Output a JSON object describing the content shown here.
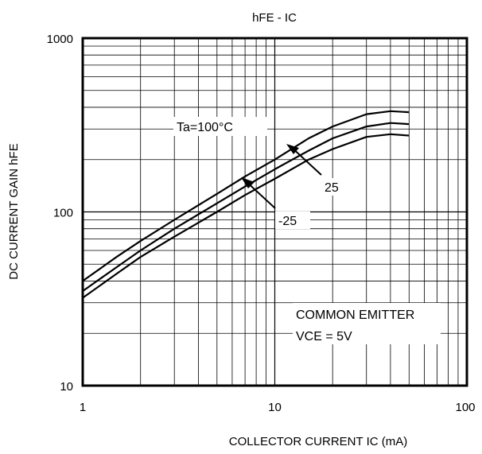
{
  "chart_data": {
    "type": "line",
    "title": "hFE - IC",
    "xlabel": "COLLECTOR CURRENT  IC   (mA)",
    "ylabel": "DC CURRENT GAIN  hFE",
    "xscale": "log",
    "yscale": "log",
    "xlim": [
      1,
      100
    ],
    "ylim": [
      10,
      1000
    ],
    "xticks": [
      1,
      10,
      100
    ],
    "xtick_labels": [
      "1",
      "10",
      "100"
    ],
    "yticks": [
      10,
      100,
      1000
    ],
    "ytick_labels": [
      "10",
      "100",
      "1000"
    ],
    "grid": true,
    "line_color": "#000000",
    "series": [
      {
        "name": "Ta=100°C",
        "x": [
          1,
          1.5,
          2,
          3,
          5,
          7,
          10,
          15,
          20,
          30,
          40,
          50
        ],
        "y": [
          40,
          55,
          68,
          90,
          127,
          160,
          200,
          265,
          310,
          365,
          380,
          375
        ]
      },
      {
        "name": "25",
        "x": [
          1,
          1.5,
          2,
          3,
          5,
          7,
          10,
          15,
          20,
          30,
          40,
          50
        ],
        "y": [
          35,
          48,
          60,
          80,
          112,
          140,
          176,
          225,
          265,
          310,
          325,
          320
        ]
      },
      {
        "name": "-25",
        "x": [
          1,
          1.5,
          2,
          3,
          5,
          7,
          10,
          15,
          20,
          30,
          40,
          50
        ],
        "y": [
          32,
          44,
          55,
          72,
          100,
          125,
          155,
          200,
          230,
          270,
          280,
          275
        ]
      }
    ],
    "annotations": [
      "COMMON EMITTER",
      "VCE = 5V"
    ]
  }
}
